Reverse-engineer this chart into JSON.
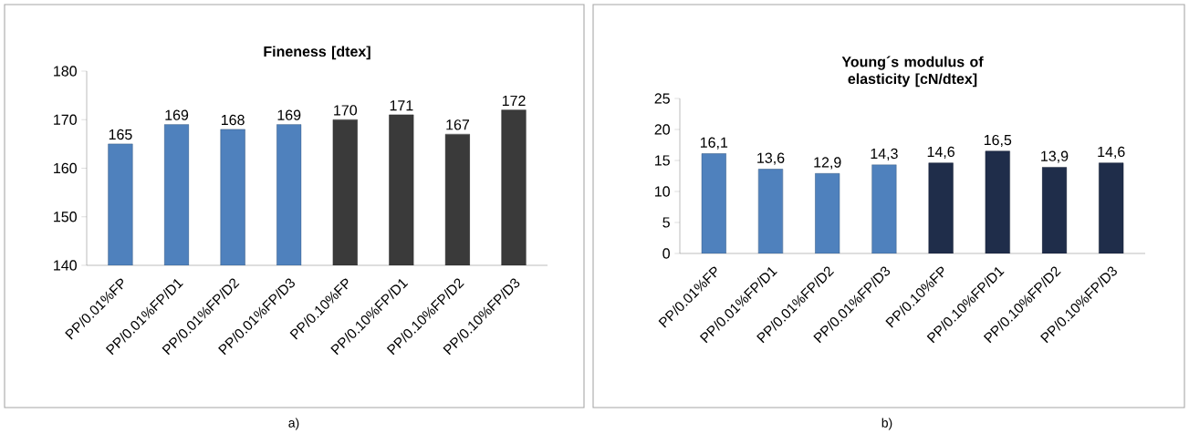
{
  "chart_data": [
    {
      "type": "bar",
      "title": "Fineness  [dtex]",
      "categories": [
        "PP/0.01%FP",
        "PP/0.01%FP/D1",
        "PP/0.01%FP/D2",
        "PP/0.01%FP/D3",
        "PP/0.10%FP",
        "PP/0.10%FP/D1",
        "PP/0.10%FP/D2",
        "PP/0.10%FP/D3"
      ],
      "values": [
        165,
        169,
        168,
        169,
        170,
        171,
        167,
        172
      ],
      "colors": [
        "#4f81bd",
        "#4f81bd",
        "#4f81bd",
        "#4f81bd",
        "#3a3a3a",
        "#3a3a3a",
        "#3a3a3a",
        "#3a3a3a"
      ],
      "ylim": [
        140,
        180
      ],
      "yticks": [
        140,
        150,
        160,
        170,
        180
      ],
      "data_labels": true,
      "grid": false,
      "annotations": [
        "a)"
      ]
    },
    {
      "type": "bar",
      "title": "Young´s modulus of elasticity [cN/dtex]",
      "categories": [
        "PP/0.01%FP",
        "PP/0.01%FP/D1",
        "PP/0.01%FP/D2",
        "PP/0.01%FP/D3",
        "PP/0.10%FP",
        "PP/0.10%FP/D1",
        "PP/0.10%FP/D2",
        "PP/0.10%FP/D3"
      ],
      "values": [
        16.1,
        13.6,
        12.9,
        14.3,
        14.6,
        16.5,
        13.9,
        14.6
      ],
      "value_labels": [
        "16,1",
        "13,6",
        "12,9",
        "14,3",
        "14,6",
        "16,5",
        "13,9",
        "14,6"
      ],
      "colors": [
        "#4f81bd",
        "#4f81bd",
        "#4f81bd",
        "#4f81bd",
        "#1f2d4a",
        "#1f2d4a",
        "#1f2d4a",
        "#1f2d4a"
      ],
      "ylim": [
        0,
        25
      ],
      "yticks": [
        0,
        5,
        10,
        15,
        20,
        25
      ],
      "grid": false,
      "annotations": [
        "b)"
      ]
    }
  ]
}
